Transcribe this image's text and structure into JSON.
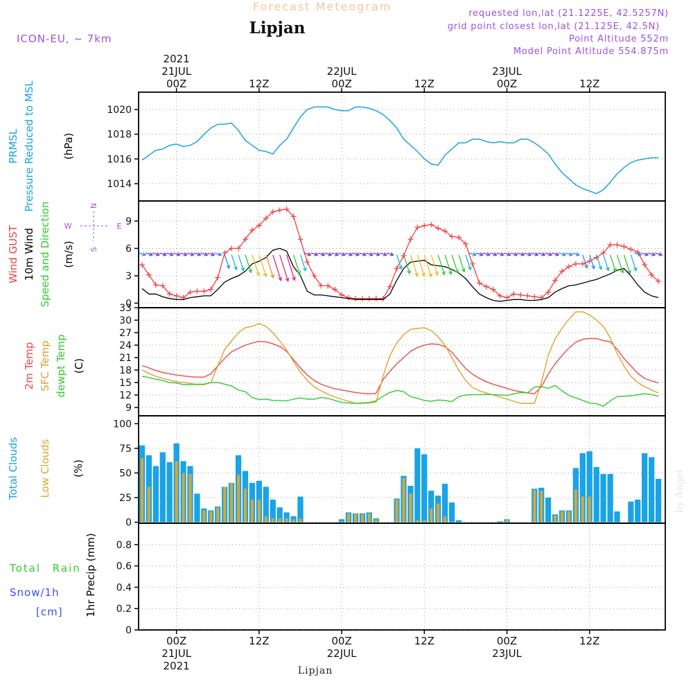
{
  "header": {
    "title": "Forecast Meteogram",
    "location": "Lipjan",
    "model": "ICON-EU, ~ 7km",
    "requested": "requested lon,lat (21.1225E, 42.5257N)",
    "closest": "grid point closest lon,lat (21.125E, 42.5N)",
    "point_alt": "Point Altitude 552m",
    "model_alt": "Model Point Altitude 554.875m",
    "footer": "Lipjan",
    "credit": "by Angel"
  },
  "time_axis": {
    "top_labels": [
      {
        "lines": [
          "2021",
          "21JUL",
          "00Z"
        ],
        "hour": 0
      },
      {
        "lines": [
          "12Z"
        ],
        "hour": 12
      },
      {
        "lines": [
          "22JUL",
          "00Z"
        ],
        "hour": 24
      },
      {
        "lines": [
          "12Z"
        ],
        "hour": 36
      },
      {
        "lines": [
          "23JUL",
          "00Z"
        ],
        "hour": 48
      },
      {
        "lines": [
          "12Z"
        ],
        "hour": 60
      }
    ],
    "bottom_labels": [
      {
        "lines": [
          "00Z",
          "21JUL",
          "2021"
        ],
        "hour": 0
      },
      {
        "lines": [
          "12Z"
        ],
        "hour": 12
      },
      {
        "lines": [
          "00Z",
          "22JUL"
        ],
        "hour": 24
      },
      {
        "lines": [
          "12Z"
        ],
        "hour": 36
      },
      {
        "lines": [
          "00Z",
          "23JUL"
        ],
        "hour": 48
      },
      {
        "lines": [
          "12Z"
        ],
        "hour": 60
      }
    ],
    "start_hour": -5.5,
    "end_hour": 71
  },
  "panels": {
    "pressure": {
      "labels": [
        "PRMSL",
        "Pressure Reduced to MSL"
      ],
      "unit": "(hPa)",
      "ticks": [
        "1020",
        "1018",
        "1016",
        "1014"
      ],
      "ylim": [
        1012.6,
        1021.4
      ],
      "color": "#1aa3e6"
    },
    "wind": {
      "labels": [
        "Wind GUST",
        "10m Wind",
        "Speed and Direction"
      ],
      "unit": "(m/s)",
      "ticks": [
        "9",
        "6",
        "3",
        "0"
      ],
      "ylim": [
        -0.5,
        11.2
      ],
      "compass": {
        "n": "N",
        "s": "S",
        "w": "W",
        "e": "E"
      }
    },
    "temp": {
      "labels": [
        "2m Temp",
        "SFC Temp",
        "dewpt Temp"
      ],
      "unit": "(C)",
      "ticks": [
        "33",
        "30",
        "27",
        "24",
        "21",
        "18",
        "15",
        "12",
        "9"
      ],
      "ylim": [
        7,
        33
      ]
    },
    "clouds": {
      "labels": [
        "Total Clouds",
        "Low Clouds"
      ],
      "unit": "(%)",
      "ticks": [
        "100",
        "75",
        "50",
        "25",
        "0"
      ],
      "ylim": [
        -1,
        108
      ]
    },
    "precip": {
      "labels": [
        "Total Rain",
        "Snow/1h",
        "[cm]"
      ],
      "unit": "1hr Precip (mm)",
      "ticks": [
        "0.8",
        "0.6",
        "0.4",
        "0.2",
        "0"
      ],
      "ylim": [
        0,
        1
      ]
    }
  },
  "colors": {
    "pressure": "#1aa3e6",
    "gust": "#f04040",
    "wind": "#000000",
    "t2m": "#f04848",
    "sfc": "#e0a030",
    "dew": "#30cc30",
    "total_clouds": "#1aa3e6",
    "low_clouds": "#d8a838",
    "rain": "#30cc30",
    "snow": "#3a4ef0",
    "purple": "#a050e0"
  },
  "chart_data": [
    {
      "type": "line",
      "name": "PRMSL",
      "x": [
        -5,
        -4,
        -3,
        -2,
        -1,
        0,
        1,
        2,
        3,
        4,
        5,
        6,
        7,
        8,
        9,
        10,
        11,
        12,
        13,
        14,
        15,
        16,
        17,
        18,
        19,
        20,
        21,
        22,
        23,
        24,
        25,
        26,
        27,
        28,
        29,
        30,
        31,
        32,
        33,
        34,
        35,
        36,
        37,
        38,
        39,
        40,
        41,
        42,
        43,
        44,
        45,
        46,
        47,
        48,
        49,
        50,
        51,
        52,
        53,
        54,
        55,
        56,
        57,
        58,
        59,
        60,
        61,
        62,
        63,
        64,
        65,
        66,
        67,
        68,
        69,
        70
      ],
      "values": [
        1015.9,
        1016.3,
        1016.7,
        1016.8,
        1017.1,
        1017.2,
        1017.0,
        1017.1,
        1017.4,
        1018.0,
        1018.5,
        1018.8,
        1018.8,
        1018.9,
        1018.3,
        1017.5,
        1017.1,
        1016.7,
        1016.6,
        1016.4,
        1017.1,
        1017.6,
        1018.5,
        1019.4,
        1020.0,
        1020.2,
        1020.2,
        1020.2,
        1020.0,
        1019.9,
        1019.9,
        1020.2,
        1020.2,
        1020.1,
        1019.9,
        1019.6,
        1019.1,
        1018.5,
        1017.6,
        1017.1,
        1016.6,
        1016.0,
        1015.6,
        1015.5,
        1016.3,
        1016.8,
        1017.3,
        1017.3,
        1017.6,
        1017.6,
        1017.4,
        1017.3,
        1017.4,
        1017.3,
        1017.3,
        1017.6,
        1017.6,
        1017.3,
        1016.9,
        1016.4,
        1015.6,
        1014.9,
        1014.4,
        1013.9,
        1013.6,
        1013.4,
        1013.2,
        1013.5,
        1014.1,
        1014.8,
        1015.3,
        1015.7,
        1015.9,
        1016.0,
        1016.1,
        1016.1
      ],
      "ylabel": "(hPa)",
      "ylim": [
        1012.6,
        1021.4
      ]
    },
    {
      "type": "line",
      "name": "Wind",
      "x": [
        -5,
        -4,
        -3,
        -2,
        -1,
        0,
        1,
        2,
        3,
        4,
        5,
        6,
        7,
        8,
        9,
        10,
        11,
        12,
        13,
        14,
        15,
        16,
        17,
        18,
        19,
        20,
        21,
        22,
        23,
        24,
        25,
        26,
        27,
        28,
        29,
        30,
        31,
        32,
        33,
        34,
        35,
        36,
        37,
        38,
        39,
        40,
        41,
        42,
        43,
        44,
        45,
        46,
        47,
        48,
        49,
        50,
        51,
        52,
        53,
        54,
        55,
        56,
        57,
        58,
        59,
        60,
        61,
        62,
        63,
        64,
        65,
        66,
        67,
        68,
        69,
        70
      ],
      "series": [
        {
          "name": "Wind GUST",
          "values": [
            4.2,
            3.1,
            2.0,
            1.9,
            1.0,
            0.8,
            0.6,
            1.2,
            1.3,
            1.3,
            1.5,
            2.8,
            5.5,
            6.0,
            6.0,
            7.0,
            8.0,
            8.5,
            9.3,
            10.0,
            10.2,
            10.3,
            9.5,
            7.0,
            4.5,
            3.0,
            1.9,
            1.9,
            1.5,
            0.9,
            0.6,
            0.5,
            0.5,
            0.5,
            0.5,
            0.5,
            1.8,
            3.8,
            5.2,
            7.0,
            8.3,
            8.5,
            8.6,
            8.2,
            7.9,
            7.3,
            7.2,
            6.5,
            4.3,
            2.2,
            1.8,
            1.5,
            0.8,
            0.6,
            1.0,
            0.9,
            0.8,
            0.7,
            0.6,
            1.2,
            2.5,
            3.5,
            4.0,
            4.3,
            4.3,
            4.6,
            5.0,
            5.5,
            6.4,
            6.4,
            6.2,
            5.9,
            5.6,
            4.2,
            3.1,
            2.4
          ]
        },
        {
          "name": "10m Wind",
          "values": [
            1.6,
            1.0,
            1.0,
            0.7,
            0.5,
            0.4,
            0.4,
            0.6,
            0.7,
            0.8,
            0.8,
            1.5,
            2.3,
            2.7,
            3.0,
            3.5,
            4.3,
            4.6,
            5.0,
            5.8,
            6.0,
            5.7,
            4.0,
            3.0,
            1.3,
            0.9,
            0.9,
            0.8,
            0.7,
            0.6,
            0.5,
            0.4,
            0.4,
            0.4,
            0.4,
            0.4,
            1.0,
            2.5,
            3.8,
            4.5,
            4.6,
            4.7,
            4.2,
            4.1,
            4.0,
            3.7,
            3.3,
            2.7,
            1.8,
            1.0,
            0.6,
            0.3,
            0.2,
            0.3,
            0.4,
            0.4,
            0.3,
            0.3,
            0.4,
            0.6,
            1.2,
            1.6,
            1.9,
            2.0,
            2.2,
            2.4,
            2.6,
            2.9,
            3.2,
            3.6,
            3.8,
            3.0,
            2.0,
            1.2,
            0.8,
            0.6
          ]
        }
      ],
      "ylabel": "(m/s)",
      "ylim": [
        -0.5,
        11.2
      ]
    },
    {
      "type": "line",
      "name": "Temperature",
      "x": [
        -5,
        -4,
        -3,
        -2,
        -1,
        0,
        1,
        2,
        3,
        4,
        5,
        6,
        7,
        8,
        9,
        10,
        11,
        12,
        13,
        14,
        15,
        16,
        17,
        18,
        19,
        20,
        21,
        22,
        23,
        24,
        25,
        26,
        27,
        28,
        29,
        30,
        31,
        32,
        33,
        34,
        35,
        36,
        37,
        38,
        39,
        40,
        41,
        42,
        43,
        44,
        45,
        46,
        47,
        48,
        49,
        50,
        51,
        52,
        53,
        54,
        55,
        56,
        57,
        58,
        59,
        60,
        61,
        62,
        63,
        64,
        65,
        66,
        67,
        68,
        69,
        70
      ],
      "series": [
        {
          "name": "2m Temp",
          "values": [
            19.1,
            18.5,
            17.9,
            17.4,
            17.1,
            16.8,
            16.6,
            16.4,
            16.3,
            16.3,
            17.1,
            19.0,
            20.8,
            22.4,
            23.2,
            24.0,
            24.5,
            24.9,
            24.8,
            24.3,
            23.7,
            22.5,
            20.5,
            18.5,
            16.8,
            15.5,
            14.6,
            14.0,
            13.5,
            13.2,
            12.9,
            12.6,
            12.4,
            12.3,
            12.4,
            15.7,
            17.7,
            19.5,
            21.0,
            22.5,
            23.4,
            24.0,
            24.3,
            24.2,
            23.6,
            22.3,
            20.3,
            18.4,
            17.0,
            16.0,
            15.2,
            14.6,
            14.1,
            13.6,
            13.1,
            12.8,
            12.5,
            12.3,
            14.0,
            17.0,
            19.5,
            21.5,
            23.3,
            24.7,
            25.4,
            25.6,
            25.6,
            25.1,
            24.8,
            23.0,
            20.8,
            19.0,
            17.2,
            16.0,
            15.4,
            14.9
          ]
        },
        {
          "name": "SFC Temp",
          "values": [
            18.0,
            17.2,
            16.5,
            16.0,
            15.6,
            15.2,
            15.0,
            14.8,
            14.5,
            14.5,
            15.0,
            19.0,
            23.0,
            25.0,
            27.0,
            28.2,
            28.5,
            29.2,
            28.5,
            27.0,
            25.0,
            22.8,
            20.0,
            17.5,
            15.5,
            14.0,
            13.0,
            12.2,
            11.5,
            11.0,
            10.5,
            10.0,
            10.0,
            10.1,
            10.3,
            16.5,
            21.5,
            24.5,
            26.5,
            27.8,
            28.0,
            28.2,
            27.5,
            26.0,
            24.0,
            21.0,
            18.0,
            15.5,
            13.8,
            13.0,
            12.5,
            12.0,
            11.5,
            11.0,
            10.5,
            10.0,
            10.0,
            10.0,
            15.0,
            21.5,
            25.5,
            28.0,
            30.2,
            32.0,
            32.0,
            31.3,
            30.0,
            28.5,
            25.8,
            22.0,
            19.0,
            16.5,
            15.0,
            14.0,
            13.2,
            12.5
          ]
        },
        {
          "name": "dewpt Temp",
          "values": [
            16.5,
            16.2,
            15.8,
            15.5,
            15.0,
            14.9,
            14.5,
            14.5,
            14.6,
            14.6,
            15.0,
            15.0,
            14.6,
            14.2,
            13.2,
            12.8,
            11.4,
            10.9,
            11.0,
            10.7,
            10.7,
            10.6,
            11.0,
            11.3,
            11.0,
            11.0,
            11.4,
            11.2,
            10.7,
            10.2,
            10.1,
            10.0,
            10.1,
            10.2,
            10.6,
            11.7,
            12.6,
            13.1,
            12.8,
            11.6,
            11.2,
            10.7,
            10.5,
            10.8,
            10.7,
            10.4,
            11.6,
            12.0,
            12.1,
            12.1,
            12.2,
            12.1,
            12.0,
            11.9,
            12.3,
            12.6,
            12.5,
            13.9,
            14.0,
            13.6,
            14.3,
            13.0,
            11.9,
            11.3,
            10.7,
            10.1,
            9.9,
            9.3,
            10.6,
            11.6,
            11.7,
            11.8,
            12.1,
            12.3,
            12.1,
            11.7
          ]
        }
      ],
      "ylabel": "(C)",
      "ylim": [
        7,
        33
      ]
    },
    {
      "type": "bar",
      "name": "Clouds",
      "x": [
        -5,
        -4,
        -3,
        -2,
        -1,
        0,
        1,
        2,
        3,
        4,
        5,
        6,
        7,
        8,
        9,
        10,
        11,
        12,
        13,
        14,
        15,
        16,
        17,
        18,
        19,
        20,
        21,
        22,
        23,
        24,
        25,
        26,
        27,
        28,
        29,
        30,
        31,
        32,
        33,
        34,
        35,
        36,
        37,
        38,
        39,
        40,
        41,
        42,
        43,
        44,
        45,
        46,
        47,
        48,
        49,
        50,
        51,
        52,
        53,
        54,
        55,
        56,
        57,
        58,
        59,
        60,
        61,
        62,
        63,
        64,
        65,
        66,
        67,
        68,
        69,
        70
      ],
      "series": [
        {
          "name": "Total Clouds",
          "values": [
            78,
            68,
            57,
            71,
            61,
            80,
            62,
            57,
            29,
            14,
            12,
            16,
            36,
            40,
            68,
            52,
            40,
            42,
            36,
            23,
            15,
            10,
            6,
            26,
            0,
            0,
            0,
            0,
            0,
            3,
            10,
            9,
            9,
            10,
            4,
            0,
            0,
            24,
            47,
            37,
            75,
            69,
            32,
            27,
            39,
            20,
            2,
            0,
            0,
            0,
            0,
            0,
            1,
            3,
            0,
            0,
            0,
            34,
            35,
            25,
            8,
            12,
            12,
            55,
            70,
            72,
            56,
            49,
            49,
            11,
            0,
            21,
            23,
            70,
            66,
            44
          ]
        },
        {
          "name": "Low Clouds",
          "values": [
            65,
            36,
            0,
            0,
            0,
            62,
            50,
            49,
            0,
            12,
            11,
            15,
            36,
            40,
            48,
            34,
            23,
            23,
            6,
            4,
            4,
            4,
            3,
            4,
            0,
            0,
            0,
            0,
            0,
            1,
            9,
            9,
            8,
            9,
            3,
            0,
            0,
            23,
            45,
            29,
            2,
            2,
            14,
            19,
            6,
            0,
            0,
            0,
            0,
            0,
            0,
            0,
            0,
            3,
            0,
            0,
            0,
            33,
            32,
            0,
            7,
            11,
            11,
            33,
            26,
            26,
            0,
            0,
            0,
            0,
            0,
            0,
            0,
            0,
            0,
            0
          ]
        }
      ],
      "ylabel": "(%)",
      "ylim": [
        -1,
        108
      ]
    },
    {
      "type": "bar",
      "name": "Precip",
      "x": [
        -5,
        0,
        12,
        24,
        36,
        48,
        60,
        70
      ],
      "series": [
        {
          "name": "Total Rain",
          "values": [
            0,
            0,
            0,
            0,
            0,
            0,
            0,
            0
          ]
        },
        {
          "name": "Snow/1h",
          "values": [
            0,
            0,
            0,
            0,
            0,
            0,
            0,
            0
          ]
        }
      ],
      "ylabel": "1hr Precip (mm)",
      "ylim": [
        0,
        1
      ]
    }
  ]
}
